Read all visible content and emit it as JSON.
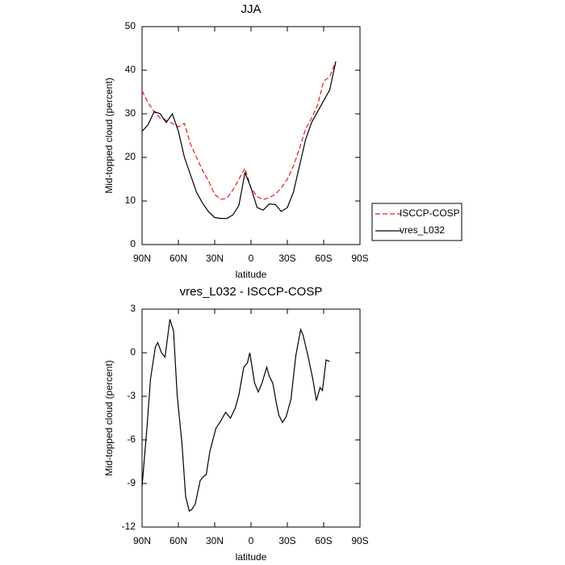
{
  "chart_data": [
    {
      "type": "line",
      "title": "JJA",
      "x_label": "latitude",
      "y_label": "Mid-topped cloud (percent)",
      "x": [
        90,
        85,
        80,
        75,
        70,
        65,
        60,
        55,
        50,
        45,
        40,
        35,
        30,
        25,
        20,
        15,
        10,
        5,
        0,
        -5,
        -10,
        -15,
        -20,
        -25,
        -30,
        -35,
        -40,
        -45,
        -50,
        -55,
        -60,
        -65,
        -70
      ],
      "series": [
        {
          "name": "ISCCP-COSP",
          "color": "#e41a1c",
          "line_style": "dashed",
          "values": [
            35.3,
            32.5,
            30.5,
            29,
            28.5,
            27.8,
            27,
            27.8,
            23,
            20,
            17,
            14.5,
            11.5,
            10.4,
            10.6,
            12.5,
            15,
            17.5,
            13,
            11,
            10.3,
            10.8,
            11.5,
            13,
            15,
            18,
            22,
            26.5,
            29,
            32,
            37.5,
            38.5,
            42
          ]
        },
        {
          "name": "vres_L032",
          "color": "#000000",
          "line_style": "solid",
          "values": [
            26,
            27.5,
            30.5,
            30,
            28,
            30,
            26,
            20,
            16,
            12,
            9.5,
            7.5,
            6.2,
            6,
            6,
            6.8,
            9,
            16.5,
            13,
            8.5,
            7.9,
            9.3,
            9.2,
            7.6,
            8.5,
            12,
            18,
            24,
            28,
            30.5,
            33,
            35.5,
            42
          ]
        }
      ],
      "xlim": [
        90,
        -90
      ],
      "xticks": [
        {
          "value": 90,
          "label": "90N"
        },
        {
          "value": 60,
          "label": "60N"
        },
        {
          "value": 30,
          "label": "30N"
        },
        0,
        {
          "value": -30,
          "label": "30S"
        },
        {
          "value": -60,
          "label": "60S"
        },
        {
          "value": -90,
          "label": "90S"
        }
      ],
      "ylim": [
        0,
        50
      ],
      "yticks": [
        0,
        10,
        20,
        30,
        40,
        50
      ]
    },
    {
      "type": "line",
      "title": "vres_L032 - ISCCP-COSP",
      "x_label": "latitude",
      "y_label": "Mid-topped cloud (percent)",
      "x": [
        90,
        86,
        83,
        79,
        77,
        74,
        71,
        67,
        64,
        61,
        57,
        54,
        51,
        49,
        46,
        42,
        39,
        37,
        34,
        29,
        25,
        21,
        17,
        13,
        10,
        6,
        3,
        1,
        -3,
        -6,
        -9,
        -13,
        -15,
        -18,
        -21,
        -23,
        -26,
        -29,
        -33,
        -37,
        -41,
        -43,
        -47,
        -51,
        -54,
        -57,
        -59,
        -62,
        -65
      ],
      "color": "#000000",
      "values": [
        -9.2,
        -5.2,
        -1.8,
        0.4,
        0.7,
        0,
        -0.3,
        2.3,
        1.5,
        -2.9,
        -6.3,
        -9.9,
        -10.9,
        -10.8,
        -10.4,
        -8.8,
        -8.5,
        -8.4,
        -6.8,
        -5.2,
        -4.7,
        -4.1,
        -4.5,
        -3.8,
        -2.9,
        -1,
        -0.7,
        0,
        -2.1,
        -2.7,
        -2.1,
        -1,
        -1.6,
        -2.1,
        -3.5,
        -4.3,
        -4.8,
        -4.4,
        -3.2,
        -0.2,
        1.6,
        1.2,
        -0.2,
        -1.8,
        -3.3,
        -2.4,
        -2.6,
        -0.5,
        -0.6
      ],
      "xlim": [
        90,
        -90
      ],
      "xticks": [
        {
          "value": 90,
          "label": "90N"
        },
        {
          "value": 60,
          "label": "60N"
        },
        {
          "value": 30,
          "label": "30N"
        },
        0,
        {
          "value": -30,
          "label": "30S"
        },
        {
          "value": -60,
          "label": "60S"
        },
        {
          "value": -90,
          "label": "90S"
        }
      ],
      "ylim": [
        -12,
        3
      ],
      "yticks": [
        -12,
        -9,
        -6,
        -3,
        0,
        3
      ]
    }
  ]
}
